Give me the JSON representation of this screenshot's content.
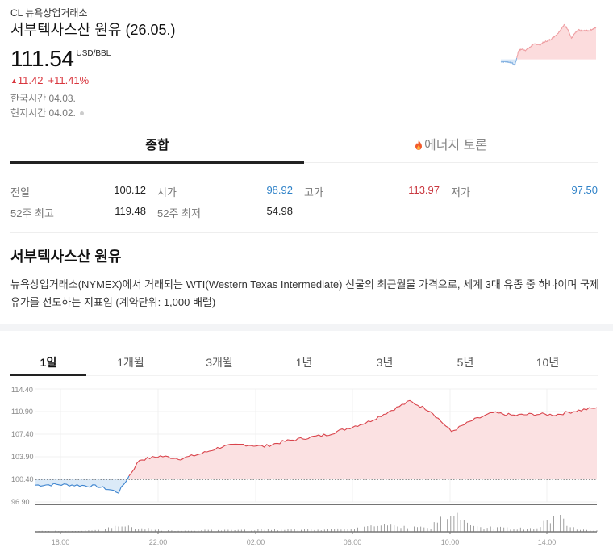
{
  "header": {
    "exchange": "CL 뉴욕상업거래소",
    "title": "서부텍사스산 원유 (26.05.)",
    "price": "111.54",
    "unit": "USD/BBL",
    "change_icon": "triangle-up-icon",
    "change": "11.42",
    "change_pct": "+11.41%",
    "korea_time_label": "한국시간",
    "korea_time": "04.03.",
    "local_time_label": "현지시간",
    "local_time": "04.02."
  },
  "tabs": [
    {
      "label": "종합",
      "active": true
    },
    {
      "label": "에너지 토론",
      "icon": "flame-icon",
      "active": false
    }
  ],
  "stats": {
    "row1": [
      {
        "label": "전일",
        "value": "100.12",
        "color": "default"
      },
      {
        "label": "시가",
        "value": "98.92",
        "color": "blue"
      },
      {
        "label": "고가",
        "value": "113.97",
        "color": "red"
      },
      {
        "label": "저가",
        "value": "97.50",
        "color": "blue"
      }
    ],
    "row2": [
      {
        "label": "52주 최고",
        "value": "119.48",
        "color": "default"
      },
      {
        "label": "52주 최저",
        "value": "54.98",
        "color": "default"
      }
    ]
  },
  "description": {
    "heading": "서부텍사스산 원유",
    "body": "뉴욕상업거래소(NYMEX)에서 거래되는 WTI(Western Texas Intermediate) 선물의 최근월물 가격으로, 세계 3대 유종 중 하나이며 국제 유가를 선도하는 지표임 (계약단위: 1,000 배럴)"
  },
  "periods": [
    {
      "label": "1일",
      "active": true
    },
    {
      "label": "1개월",
      "active": false
    },
    {
      "label": "3개월",
      "active": false
    },
    {
      "label": "1년",
      "active": false
    },
    {
      "label": "3년",
      "active": false
    },
    {
      "label": "5년",
      "active": false
    },
    {
      "label": "10년",
      "active": false
    }
  ],
  "colors": {
    "up": "#d9363e",
    "down": "#2f82c8",
    "up_fill": "#fbe0e1",
    "down_fill": "#dbeaf8"
  },
  "chart_data": {
    "type": "area",
    "title": "",
    "xlabel": "",
    "ylabel": "",
    "y_ticks": [
      "114.40",
      "110.90",
      "107.40",
      "103.90",
      "100.40",
      "96.90"
    ],
    "x_ticks": [
      "18:00",
      "22:00",
      "02:00",
      "06:00",
      "10:00",
      "14:00"
    ],
    "ylim": [
      96.9,
      114.4
    ],
    "baseline": 100.4,
    "grid": true,
    "x": [
      "16:00",
      "17:00",
      "18:00",
      "19:00",
      "19:30",
      "20:00",
      "21:00",
      "22:00",
      "23:00",
      "00:00",
      "01:00",
      "02:00",
      "03:00",
      "04:00",
      "05:00",
      "06:00",
      "07:00",
      "08:00",
      "08:30",
      "09:00",
      "09:30",
      "10:00",
      "11:00",
      "12:00",
      "13:00",
      "14:00",
      "15:00",
      "16:00"
    ],
    "series": [
      {
        "name": "price",
        "values": [
          99.5,
          99.6,
          99.5,
          99.3,
          98.4,
          103.4,
          104.0,
          103.6,
          104.4,
          105.5,
          105.8,
          105.5,
          106.3,
          106.8,
          107.3,
          108.3,
          109.3,
          110.9,
          112.5,
          111.0,
          107.8,
          109.5,
          110.7,
          110.3,
          110.5,
          110.4,
          111.0,
          111.5
        ]
      },
      {
        "name": "volume",
        "values": [
          1,
          1,
          1,
          2,
          8,
          5,
          2,
          1,
          2,
          2,
          2,
          3,
          3,
          3,
          3,
          4,
          6,
          9,
          7,
          6,
          25,
          6,
          5,
          4,
          4,
          20,
          3,
          2
        ]
      }
    ]
  }
}
